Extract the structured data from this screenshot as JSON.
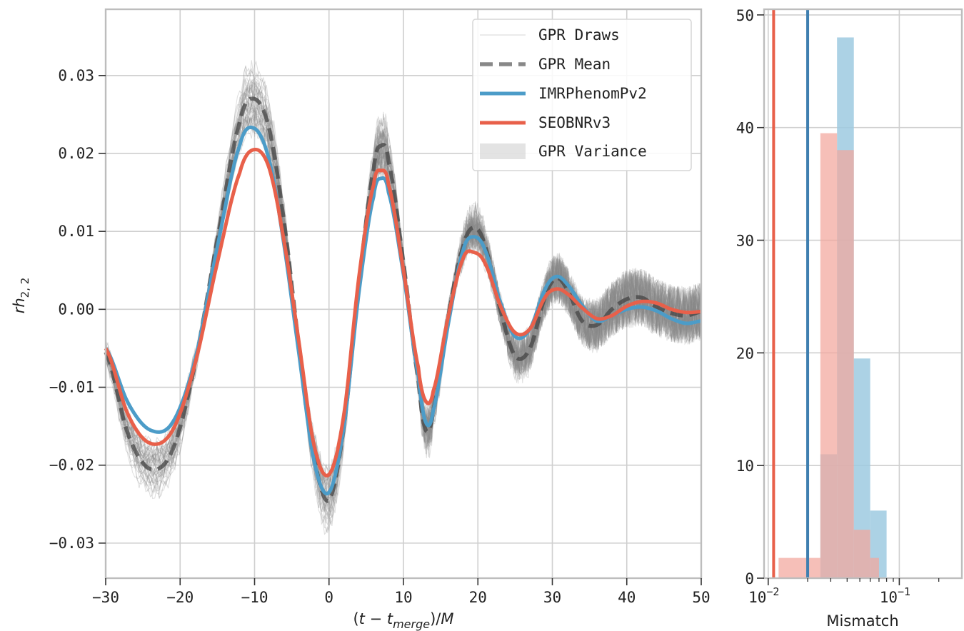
{
  "chart_data": [
    {
      "type": "line",
      "xlabel": "(t − t_merge)/M",
      "ylabel": "rh_2,2",
      "xlim": [
        -30,
        50
      ],
      "ylim": [
        -0.0345,
        0.0385
      ],
      "x_ticks": [
        -30,
        -20,
        -10,
        0,
        10,
        20,
        30,
        40,
        50
      ],
      "x_tick_labels": [
        "−30",
        "−20",
        "−10",
        "0",
        "10",
        "20",
        "30",
        "40",
        "50"
      ],
      "y_ticks": [
        -0.03,
        -0.02,
        -0.01,
        0.0,
        0.01,
        0.02,
        0.03
      ],
      "y_tick_labels": [
        "−0.03",
        "−0.02",
        "−0.01",
        "0.00",
        "0.01",
        "0.02",
        "0.03"
      ],
      "grid": true,
      "legend_position": "top-right",
      "legend": [
        "GPR Draws",
        "GPR Mean",
        "IMRPhenomPv2",
        "SEOBNRv3",
        "GPR Variance"
      ],
      "x": [
        -30,
        -27,
        -24,
        -21,
        -18,
        -15,
        -12,
        -10,
        -8,
        -6,
        -4,
        -2,
        0,
        2,
        4,
        6,
        7,
        8,
        10,
        12,
        13,
        14,
        16,
        18,
        19.5,
        21,
        23,
        25,
        27,
        29,
        30.5,
        32,
        34,
        36,
        38,
        40,
        42,
        44,
        46,
        48,
        50
      ],
      "series": [
        {
          "name": "GPR Mean",
          "color": "#555555",
          "style": "dashed",
          "values": [
            -0.0055,
            -0.016,
            -0.0205,
            -0.018,
            -0.007,
            0.009,
            0.024,
            0.027,
            0.023,
            0.011,
            -0.005,
            -0.019,
            -0.0245,
            -0.015,
            0.003,
            0.018,
            0.021,
            0.019,
            0.006,
            -0.009,
            -0.0155,
            -0.013,
            -0.001,
            0.008,
            0.0105,
            0.008,
            0.0,
            -0.006,
            -0.005,
            0.0015,
            0.004,
            0.0025,
            -0.0015,
            -0.002,
            0.0,
            0.0013,
            0.0015,
            0.0003,
            -0.0005,
            -0.0008,
            -0.0003
          ]
        },
        {
          "name": "IMRPhenomPv2",
          "color": "#4c9cc8",
          "style": "solid",
          "values": [
            -0.005,
            -0.012,
            -0.0155,
            -0.0145,
            -0.0065,
            0.008,
            0.021,
            0.0232,
            0.019,
            0.008,
            -0.006,
            -0.0195,
            -0.0235,
            -0.015,
            0.002,
            0.0145,
            0.0168,
            0.015,
            0.0045,
            -0.0085,
            -0.0145,
            -0.013,
            -0.002,
            0.0075,
            0.0093,
            0.0075,
            0.001,
            -0.0035,
            -0.0025,
            0.0025,
            0.0042,
            0.0032,
            0.0005,
            -0.0015,
            -0.0008,
            0.0,
            0.0003,
            -0.0002,
            -0.0012,
            -0.0018,
            -0.0015
          ]
        },
        {
          "name": "SEOBNRv3",
          "color": "#e8604a",
          "style": "solid",
          "values": [
            -0.005,
            -0.0135,
            -0.0172,
            -0.0155,
            -0.007,
            0.006,
            0.0175,
            0.0205,
            0.018,
            0.0085,
            -0.0045,
            -0.0175,
            -0.0212,
            -0.0135,
            0.004,
            0.016,
            0.0178,
            0.016,
            0.005,
            -0.0075,
            -0.0118,
            -0.0105,
            -0.001,
            0.0065,
            0.0073,
            0.0058,
            0.0005,
            -0.003,
            -0.0025,
            0.0015,
            0.0026,
            0.002,
            0.0002,
            -0.0012,
            -0.0008,
            0.0004,
            0.001,
            0.0008,
            0.0,
            -0.0004,
            -0.0003
          ]
        }
      ]
    },
    {
      "type": "bar",
      "xlabel": "Mismatch",
      "x_scale": "log",
      "xlim": [
        0.0093,
        0.3
      ],
      "ylim": [
        0,
        50.5
      ],
      "y_ticks": [
        0,
        10,
        20,
        30,
        40,
        50
      ],
      "y_tick_labels": [
        "0",
        "10",
        "20",
        "30",
        "40",
        "50"
      ],
      "x_ticks": [
        0.01,
        0.1
      ],
      "grid": true,
      "series": [
        {
          "name": "IMRPhenomPv2",
          "color": "#9ecae1",
          "bins": [
            [
              0.025,
              0.0335,
              11
            ],
            [
              0.0335,
              0.045,
              48
            ],
            [
              0.045,
              0.06,
              19.5
            ],
            [
              0.06,
              0.08,
              6
            ]
          ],
          "reference_line": 0.02,
          "line_color": "#3f7fb0"
        },
        {
          "name": "SEOBNRv3",
          "color": "#f2a69c",
          "bins": [
            [
              0.012,
              0.0185,
              1.8
            ],
            [
              0.0185,
              0.025,
              1.8
            ],
            [
              0.025,
              0.0335,
              39.5
            ],
            [
              0.0335,
              0.045,
              38
            ],
            [
              0.045,
              0.06,
              4.3
            ],
            [
              0.06,
              0.07,
              1.8
            ]
          ],
          "reference_line": 0.011,
          "line_color": "#e8604a"
        }
      ]
    }
  ]
}
